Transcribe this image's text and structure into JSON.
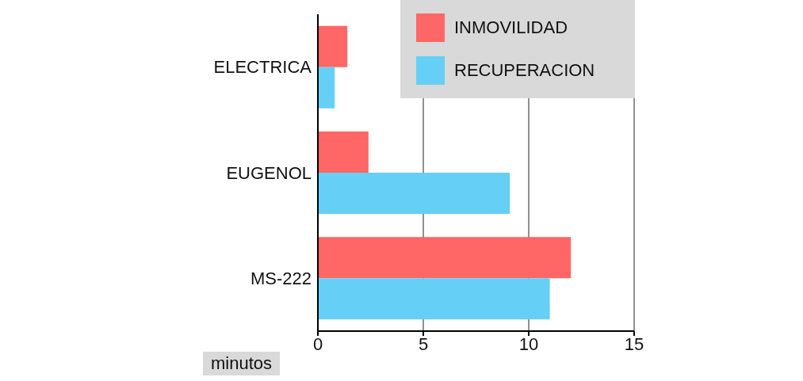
{
  "chart_data": {
    "type": "bar",
    "orientation": "horizontal",
    "categories": [
      "ELECTRICA",
      "EUGENOL",
      "MS-222"
    ],
    "series": [
      {
        "name": "INMOVILIDAD",
        "color": "#ff6666",
        "values": [
          1.4,
          2.4,
          12.0
        ]
      },
      {
        "name": "RECUPERACION",
        "color": "#66cff5",
        "values": [
          0.8,
          9.1,
          11.0
        ]
      }
    ],
    "xlabel": "minutos",
    "xlim": [
      0,
      15
    ],
    "xticks": [
      0,
      5,
      10,
      15
    ],
    "grid": "x",
    "legend": "top right"
  }
}
